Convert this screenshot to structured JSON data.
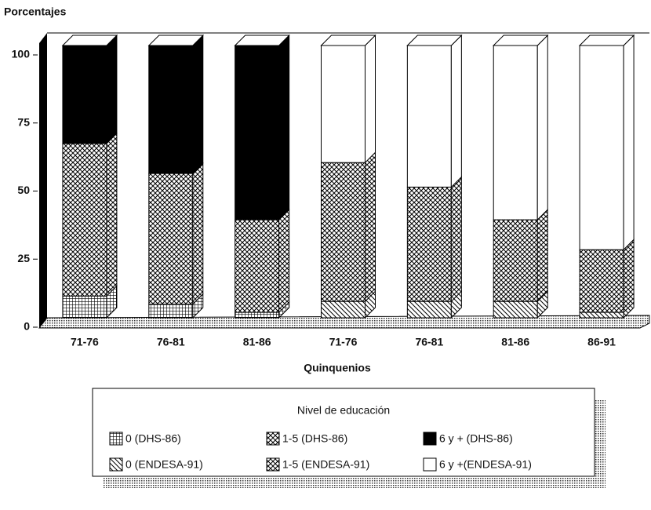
{
  "chart_data": {
    "type": "stacked_bar",
    "y_label": "Porcentajes",
    "x_label": "Quinquenios",
    "categories": [
      "71-76",
      "76-81",
      "81-86",
      "71-76",
      "76-81",
      "81-86",
      "86-91"
    ],
    "ylim": [
      0,
      100
    ],
    "yticks": [
      0,
      25,
      50,
      75,
      100
    ],
    "legend_title": "Nivel de educación",
    "series": [
      {
        "name": "0  (DHS-86)",
        "color": "#000000",
        "pattern": "grid",
        "values": [
          8,
          5,
          2,
          null,
          null,
          null,
          null
        ]
      },
      {
        "name": "1-5 (DHS-86)",
        "color": "#000000",
        "pattern": "crosshatch",
        "values": [
          56,
          48,
          34,
          null,
          null,
          null,
          null
        ]
      },
      {
        "name": "6 y + (DHS-86)",
        "color": "#000000",
        "pattern": "solid",
        "values": [
          36,
          47,
          64,
          null,
          null,
          null,
          null
        ]
      },
      {
        "name": "0 (ENDESA-91)",
        "color": "#000000",
        "pattern": "diagonal",
        "values": [
          null,
          null,
          null,
          6,
          6,
          6,
          2
        ]
      },
      {
        "name": "1-5 (ENDESA-91)",
        "color": "#000000",
        "pattern": "crosshatch",
        "values": [
          null,
          null,
          null,
          51,
          42,
          30,
          23
        ]
      },
      {
        "name": "6 y +(ENDESA-91)",
        "color": "#ffffff",
        "pattern": "none",
        "values": [
          null,
          null,
          null,
          43,
          52,
          64,
          75
        ]
      }
    ]
  }
}
